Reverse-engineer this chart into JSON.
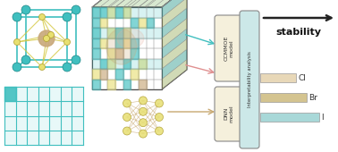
{
  "bg_color": "#ffffff",
  "teal": "#40bfbf",
  "yellow": "#e8e07a",
  "tan": "#c8a87a",
  "pink": "#e8b0a0",
  "box_fill": "#f5f0dc",
  "box_fill2": "#cce8e8",
  "bar_cl": "#e8d8b8",
  "bar_br": "#d4c490",
  "bar_i": "#a8d8d8",
  "grid_color": "#40bfbf",
  "ccmmoe_text": "CCMMOE\nmodel",
  "dnn_text": "DNN\nmodel",
  "interp_text": "Interpretability analysis",
  "cl_label": "Cl",
  "br_label": "Br",
  "i_label": "I",
  "stability_text": "stability"
}
